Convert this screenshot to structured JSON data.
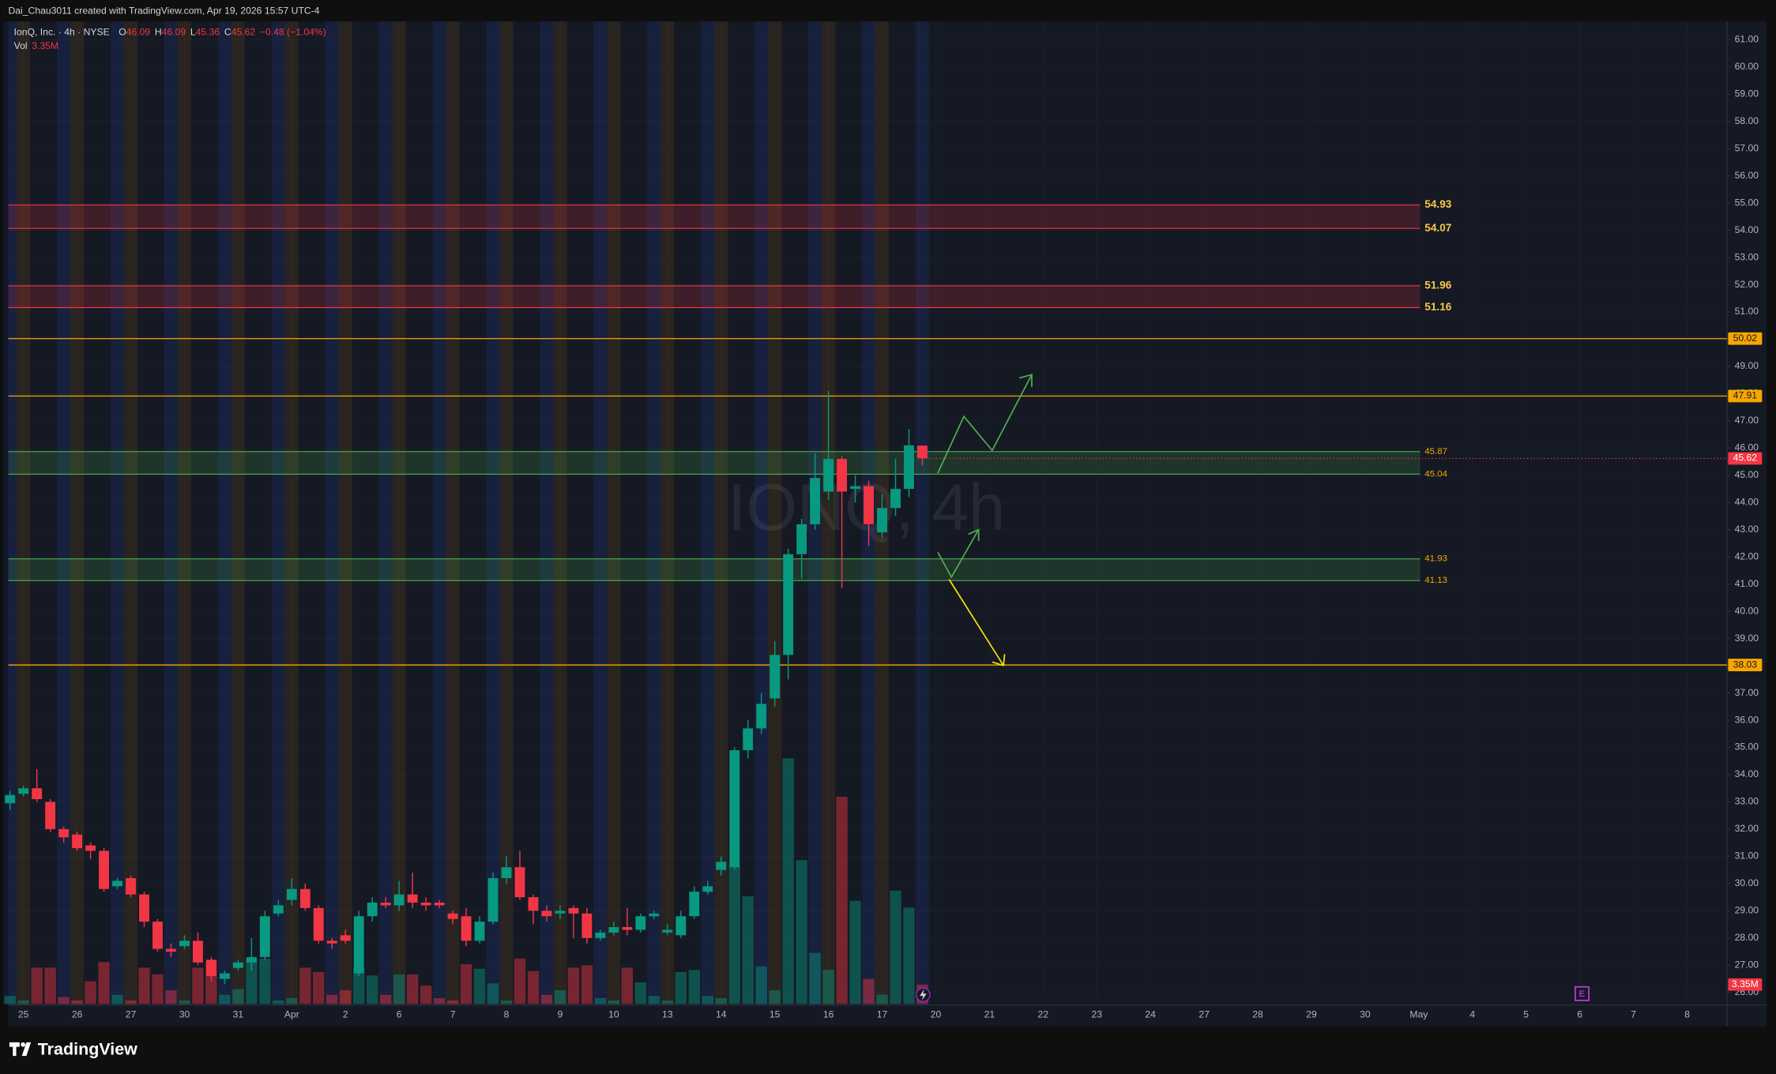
{
  "chart_data": {
    "type": "candlestick",
    "credit": "Dai_Chau3011 created with TradingView.com, Apr 19, 2026 15:57 UTC-4",
    "title": "IonQ, Inc. · 4h · NYSE",
    "ohlc_labels": [
      "O",
      "H",
      "L",
      "C"
    ],
    "change": "−0.48 (−1.04%)",
    "volume_title": "Vol",
    "volume_last_label": "3.35M",
    "watermark": "IONQ, 4h",
    "earnings_marker": "E",
    "brand": "TradingView",
    "up_color": "#089981",
    "down_color": "#f23645",
    "grid": true,
    "x": [
      0,
      1,
      2,
      3,
      4,
      5,
      6,
      7,
      8,
      9,
      10,
      11,
      12,
      13,
      14,
      15,
      16,
      17,
      18,
      19,
      20,
      21,
      22,
      23,
      24,
      25,
      26,
      27,
      28,
      29,
      30,
      31,
      32,
      33,
      34,
      35,
      36,
      37,
      38,
      39,
      40,
      41,
      42,
      43,
      44,
      45,
      46,
      47,
      48,
      49,
      50,
      51,
      52,
      53,
      54,
      55,
      56,
      57,
      58,
      59,
      60,
      61,
      62,
      63,
      64,
      65,
      66,
      67,
      68
    ],
    "open": [
      32.95,
      33.3,
      33.5,
      33.0,
      32.0,
      31.8,
      31.4,
      31.2,
      29.9,
      30.2,
      29.6,
      28.6,
      27.6,
      27.7,
      27.9,
      27.2,
      26.5,
      26.9,
      27.1,
      27.3,
      28.9,
      29.4,
      29.8,
      29.1,
      27.9,
      28.1,
      26.7,
      28.8,
      29.3,
      29.2,
      29.6,
      29.3,
      29.3,
      28.9,
      28.8,
      27.9,
      28.6,
      30.2,
      30.6,
      29.5,
      29.0,
      28.9,
      29.1,
      28.9,
      28.0,
      28.2,
      28.4,
      28.3,
      28.8,
      28.2,
      28.1,
      28.8,
      29.7,
      30.5,
      30.6,
      34.9,
      35.7,
      36.8,
      38.4,
      42.1,
      43.2,
      44.4,
      45.6,
      44.5,
      44.6,
      42.9,
      43.8,
      44.5,
      46.09
    ],
    "high": [
      33.4,
      33.6,
      34.2,
      33.1,
      32.1,
      31.9,
      31.5,
      31.3,
      30.2,
      30.3,
      29.7,
      28.7,
      27.8,
      28.1,
      28.2,
      27.3,
      26.8,
      27.2,
      28.0,
      29.0,
      29.4,
      30.2,
      30.0,
      29.2,
      28.0,
      28.3,
      29.0,
      29.5,
      29.5,
      30.1,
      30.4,
      29.5,
      29.4,
      29.0,
      29.1,
      28.8,
      30.4,
      31.0,
      31.2,
      29.6,
      29.2,
      29.2,
      29.2,
      29.1,
      28.3,
      28.6,
      29.1,
      28.9,
      29.0,
      28.5,
      29.0,
      29.9,
      30.1,
      31.0,
      35.0,
      36.0,
      37.0,
      38.9,
      42.3,
      43.4,
      45.8,
      48.1,
      45.7,
      45.0,
      44.8,
      44.3,
      45.6,
      46.7,
      46.09
    ],
    "low": [
      32.7,
      33.2,
      33.0,
      31.9,
      31.5,
      31.2,
      30.9,
      29.7,
      29.8,
      29.5,
      28.4,
      27.5,
      27.3,
      27.6,
      27.0,
      26.4,
      26.3,
      26.8,
      26.8,
      27.2,
      28.8,
      29.2,
      29.0,
      27.8,
      27.6,
      27.8,
      26.6,
      28.6,
      29.1,
      29.0,
      29.1,
      29.0,
      29.1,
      28.5,
      27.7,
      27.8,
      28.5,
      30.0,
      29.4,
      28.5,
      28.6,
      28.7,
      28.0,
      27.8,
      27.9,
      28.1,
      28.1,
      28.2,
      28.7,
      28.1,
      28.0,
      28.7,
      29.6,
      30.3,
      30.5,
      34.6,
      35.5,
      36.5,
      37.5,
      41.2,
      43.0,
      44.1,
      40.85,
      44.0,
      42.4,
      42.7,
      43.5,
      44.2,
      45.36
    ],
    "close": [
      33.25,
      33.5,
      33.1,
      32.0,
      31.7,
      31.3,
      31.2,
      29.8,
      30.1,
      29.6,
      28.6,
      27.6,
      27.5,
      27.9,
      27.1,
      26.6,
      26.7,
      27.1,
      27.3,
      28.8,
      29.2,
      29.8,
      29.1,
      27.9,
      27.8,
      27.9,
      28.8,
      29.3,
      29.2,
      29.6,
      29.3,
      29.2,
      29.2,
      28.7,
      27.9,
      28.6,
      30.2,
      30.6,
      29.5,
      29.0,
      28.8,
      29.0,
      28.9,
      28.0,
      28.2,
      28.4,
      28.3,
      28.8,
      28.9,
      28.3,
      28.8,
      29.7,
      29.9,
      30.8,
      34.9,
      35.7,
      36.6,
      38.4,
      42.1,
      43.2,
      44.9,
      45.6,
      44.4,
      44.6,
      43.2,
      43.8,
      44.5,
      46.1,
      45.62
    ],
    "volume": [
      1.38,
      0.59,
      6.3,
      6.3,
      1.18,
      0.59,
      3.94,
      7.29,
      1.58,
      0.59,
      6.3,
      5.12,
      2.36,
      0.59,
      6.3,
      7.49,
      1.58,
      2.56,
      7.88,
      7.88,
      0.59,
      0.99,
      6.3,
      5.52,
      1.58,
      2.36,
      6.3,
      4.93,
      1.58,
      5.12,
      5.12,
      3.15,
      0.99,
      0.59,
      6.9,
      6.11,
      3.55,
      0.59,
      7.88,
      5.71,
      1.58,
      2.36,
      6.3,
      6.7,
      0.99,
      0.59,
      6.3,
      3.74,
      1.38,
      0.59,
      5.52,
      5.91,
      1.38,
      0.99,
      24.03,
      18.72,
      6.5,
      2.36,
      42.75,
      25.02,
      8.87,
      5.91,
      36.05,
      17.93,
      4.33,
      1.58,
      19.7,
      16.75,
      3.35
    ],
    "xlim": [
      -0.13,
      127.97
    ],
    "xticks": [
      {
        "value": 1,
        "label": "25"
      },
      {
        "value": 5,
        "label": "26"
      },
      {
        "value": 9,
        "label": "27"
      },
      {
        "value": 13,
        "label": "30"
      },
      {
        "value": 17,
        "label": "31"
      },
      {
        "value": 21,
        "label": "Apr"
      },
      {
        "value": 25,
        "label": "2"
      },
      {
        "value": 29,
        "label": "6"
      },
      {
        "value": 33,
        "label": "7"
      },
      {
        "value": 37,
        "label": "8"
      },
      {
        "value": 41,
        "label": "9"
      },
      {
        "value": 45,
        "label": "10"
      },
      {
        "value": 49,
        "label": "13"
      },
      {
        "value": 53,
        "label": "14"
      },
      {
        "value": 57,
        "label": "15"
      },
      {
        "value": 61,
        "label": "16"
      },
      {
        "value": 65,
        "label": "17"
      },
      {
        "value": 69,
        "label": "20"
      },
      {
        "value": 73,
        "label": "21"
      },
      {
        "value": 77,
        "label": "22"
      },
      {
        "value": 81,
        "label": "23"
      },
      {
        "value": 85,
        "label": "24"
      },
      {
        "value": 89,
        "label": "27"
      },
      {
        "value": 93,
        "label": "28"
      },
      {
        "value": 97,
        "label": "29"
      },
      {
        "value": 101,
        "label": "30"
      },
      {
        "value": 105,
        "label": "May"
      },
      {
        "value": 109,
        "label": "4"
      },
      {
        "value": 113,
        "label": "5"
      },
      {
        "value": 117,
        "label": "6"
      },
      {
        "value": 121,
        "label": "7"
      },
      {
        "value": 125,
        "label": "8"
      }
    ],
    "ylim": [
      25.54,
      61.67
    ],
    "yticks": [
      {
        "value": 26,
        "label": "26.00"
      },
      {
        "value": 27,
        "label": "27.00"
      },
      {
        "value": 28,
        "label": "28.00"
      },
      {
        "value": 29,
        "label": "29.00"
      },
      {
        "value": 30,
        "label": "30.00"
      },
      {
        "value": 31,
        "label": "31.00"
      },
      {
        "value": 32,
        "label": "32.00"
      },
      {
        "value": 33,
        "label": "33.00"
      },
      {
        "value": 34,
        "label": "34.00"
      },
      {
        "value": 35,
        "label": "35.00"
      },
      {
        "value": 36,
        "label": "36.00"
      },
      {
        "value": 37,
        "label": "37.00"
      },
      {
        "value": 38,
        "label": "38.00"
      },
      {
        "value": 39,
        "label": "39.00"
      },
      {
        "value": 40,
        "label": "40.00"
      },
      {
        "value": 41,
        "label": "41.00"
      },
      {
        "value": 42,
        "label": "42.00"
      },
      {
        "value": 43,
        "label": "43.00"
      },
      {
        "value": 44,
        "label": "44.00"
      },
      {
        "value": 45,
        "label": "45.00"
      },
      {
        "value": 46,
        "label": "46.00"
      },
      {
        "value": 47,
        "label": "47.00"
      },
      {
        "value": 48,
        "label": "48.00"
      },
      {
        "value": 49,
        "label": "49.00"
      },
      {
        "value": 50,
        "label": "50.00"
      },
      {
        "value": 51,
        "label": "51.00"
      },
      {
        "value": 52,
        "label": "52.00"
      },
      {
        "value": 53,
        "label": "53.00"
      },
      {
        "value": 54,
        "label": "54.00"
      },
      {
        "value": 55,
        "label": "55.00"
      },
      {
        "value": 56,
        "label": "56.00"
      },
      {
        "value": 57,
        "label": "57.00"
      },
      {
        "value": 58,
        "label": "58.00"
      },
      {
        "value": 59,
        "label": "59.00"
      },
      {
        "value": 60,
        "label": "60.00"
      },
      {
        "value": 61,
        "label": "61.00"
      }
    ],
    "zones": [
      {
        "top": 54.93,
        "bottom": 54.07,
        "color": "#f23645"
      },
      {
        "top": 51.96,
        "bottom": 51.16,
        "color": "#f23645"
      },
      {
        "top": 45.87,
        "bottom": 45.04,
        "color": "#4caf50"
      },
      {
        "top": 41.93,
        "bottom": 41.13,
        "color": "#4caf50"
      }
    ],
    "levels": [
      50.02,
      47.91,
      38.03
    ],
    "level_color": "#f7a600"
  }
}
